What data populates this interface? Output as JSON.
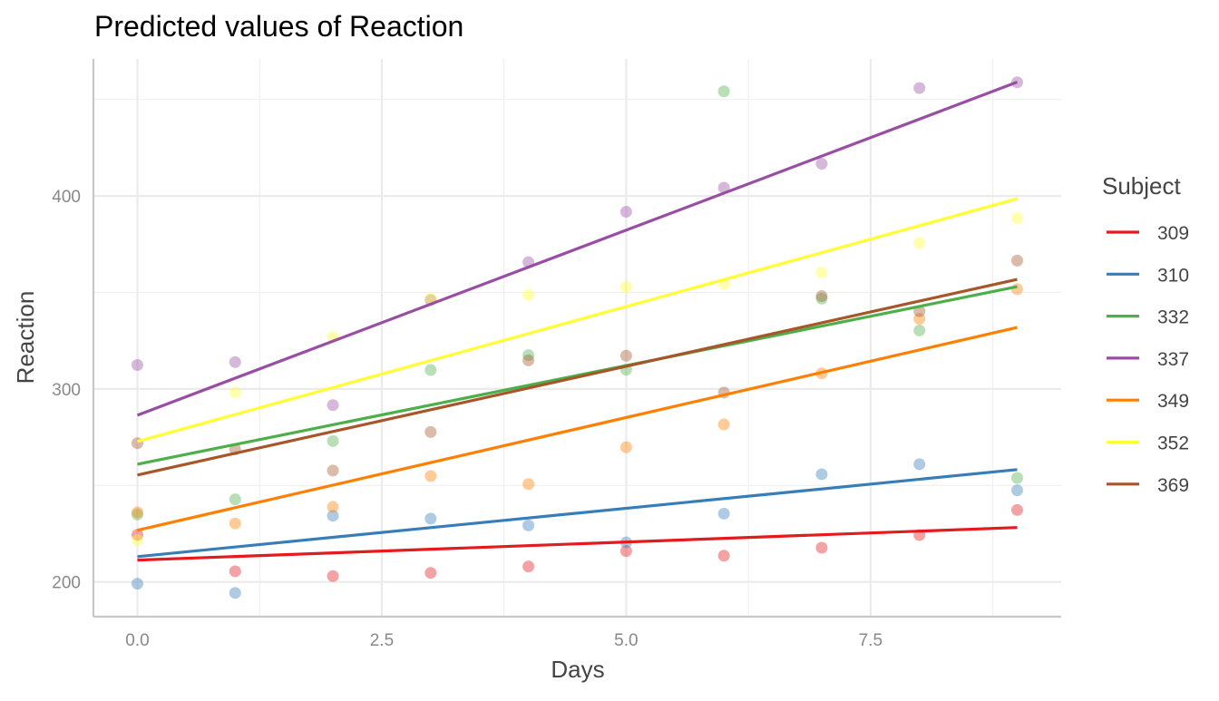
{
  "chart_data": {
    "type": "line",
    "title": "Predicted values of Reaction",
    "xlabel": "Days",
    "ylabel": "Reaction",
    "xlim": [
      -0.45,
      9.45
    ],
    "ylim": [
      182,
      471
    ],
    "x_ticks": [
      "0.0",
      "2.5",
      "5.0",
      "7.5"
    ],
    "x_tick_values": [
      0,
      2.5,
      5,
      7.5
    ],
    "y_ticks": [
      "200",
      "300",
      "400"
    ],
    "y_tick_values": [
      200,
      300,
      400
    ],
    "grid": true,
    "legend": {
      "title": "Subject",
      "position": "right"
    },
    "x": [
      0,
      1,
      2,
      3,
      4,
      5,
      6,
      7,
      8,
      9
    ],
    "series": [
      {
        "name": "309",
        "color": "#e41a1c",
        "fit": [
          211.3,
          228.2
        ],
        "points": [
          224.4,
          205.5,
          203.0,
          204.7,
          208.0,
          216.0,
          213.6,
          217.7,
          224.3,
          237.3
        ]
      },
      {
        "name": "310",
        "color": "#377eb8",
        "fit": [
          213.1,
          258.2
        ],
        "points": [
          199.1,
          194.3,
          234.3,
          232.8,
          229.3,
          220.5,
          235.4,
          255.8,
          261.0,
          247.5
        ]
      },
      {
        "name": "332",
        "color": "#4daf4a",
        "fit": [
          261.0,
          353.0
        ],
        "points": [
          234.9,
          242.8,
          273.0,
          309.8,
          317.5,
          310.0,
          454.2,
          346.8,
          330.3,
          253.9
        ]
      },
      {
        "name": "337",
        "color": "#984ea3",
        "fit": [
          286.4,
          459.0
        ],
        "points": [
          312.4,
          313.9,
          291.6,
          346.1,
          365.7,
          391.8,
          404.3,
          416.7,
          455.9,
          458.9
        ]
      },
      {
        "name": "349",
        "color": "#ff7f00",
        "fit": [
          226.8,
          331.9
        ],
        "points": [
          236.1,
          230.3,
          238.9,
          254.9,
          250.7,
          269.8,
          281.6,
          308.1,
          336.3,
          351.7
        ]
      },
      {
        "name": "352",
        "color": "#ffff33",
        "fit": [
          272.8,
          398.6
        ],
        "points": [
          221.7,
          298.2,
          326.9,
          346.9,
          348.8,
          352.8,
          354.4,
          360.4,
          375.6,
          388.5
        ]
      },
      {
        "name": "369",
        "color": "#a65628",
        "fit": [
          255.4,
          356.8
        ],
        "points": [
          271.9,
          268.7,
          257.7,
          277.7,
          314.8,
          317.2,
          298.1,
          348.1,
          340.3,
          366.5
        ]
      }
    ]
  }
}
